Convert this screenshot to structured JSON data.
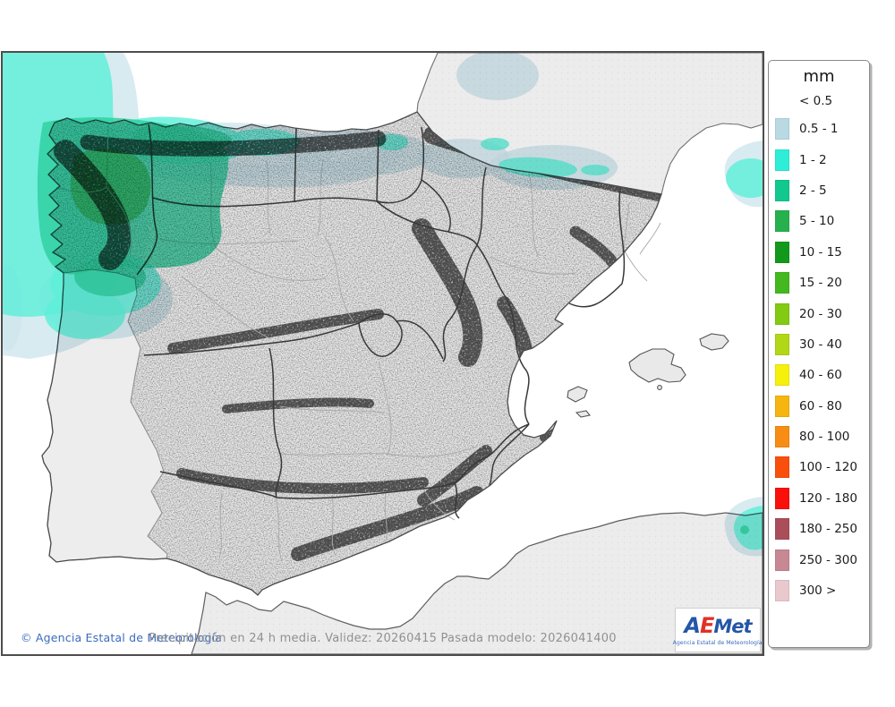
{
  "page": {
    "background": "#ffffff"
  },
  "map": {
    "frame_color": "#4d4d4d",
    "sea_color": "#ffffff",
    "land_color": "#e9e9e9",
    "footer": {
      "copyright": "© Agencia Estatal de Meteorología",
      "caption": "Precipitación en 24 h media. Validez: 20260415 Pasada modelo: 2026041400"
    },
    "overlay_colors": {
      "rain_0_5_1": "#cfe7ee",
      "rain_1_2": "#5eefd9",
      "rain_2_5": "#2fd0a0",
      "rain_5_10": "#2db463"
    }
  },
  "legend": {
    "title": "mm",
    "no_color_label": "< 0.5",
    "entries": [
      {
        "label": "0.5 - 1",
        "color": "#b9dae3"
      },
      {
        "label": "1 - 2",
        "color": "#2feed8"
      },
      {
        "label": "2 - 5",
        "color": "#12c88e"
      },
      {
        "label": "5 - 10",
        "color": "#27b14e"
      },
      {
        "label": "10 - 15",
        "color": "#12991b"
      },
      {
        "label": "15 - 20",
        "color": "#44b81f"
      },
      {
        "label": "20 - 30",
        "color": "#83ca12"
      },
      {
        "label": "30 - 40",
        "color": "#b2d716"
      },
      {
        "label": "40 - 60",
        "color": "#f6f00d"
      },
      {
        "label": "60 - 80",
        "color": "#f6b511"
      },
      {
        "label": "80 - 100",
        "color": "#f78d14"
      },
      {
        "label": "100 - 120",
        "color": "#f94f0d"
      },
      {
        "label": "120 - 180",
        "color": "#fa100a"
      },
      {
        "label": "180 - 250",
        "color": "#aa4e59"
      },
      {
        "label": "250 - 300",
        "color": "#c78793"
      },
      {
        "label": "300 >",
        "color": "#e9c8ce"
      }
    ]
  },
  "logo": {
    "part_a": "A",
    "part_e": "E",
    "part_met": "Met",
    "caption": "Agencia Estatal de Meteorología"
  }
}
